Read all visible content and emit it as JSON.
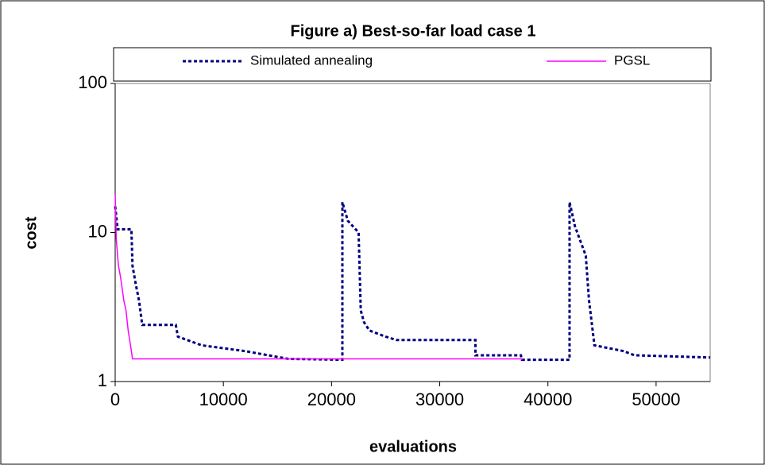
{
  "chart_data": {
    "type": "line",
    "title": "Figure a) Best-so-far load case 1",
    "x_label": "evaluations",
    "y_label": "cost",
    "xlim": [
      0,
      55000
    ],
    "xticks": [
      0,
      10000,
      20000,
      30000,
      40000,
      50000
    ],
    "ylim": [
      1,
      100
    ],
    "yticks": [
      1,
      10,
      100
    ],
    "log_y": true,
    "series": [
      {
        "name": "Simulated annealing",
        "color": "#000080",
        "dash": "dotted",
        "x": [
          0,
          200,
          200,
          1500,
          1600,
          1900,
          2200,
          2500,
          5600,
          5800,
          8000,
          12000,
          16000,
          21000,
          21000,
          21500,
          22500,
          22700,
          23000,
          23500,
          25000,
          26000,
          33300,
          33300,
          37500,
          37600,
          42000,
          42000,
          42500,
          43500,
          43800,
          44300,
          47000,
          48000,
          55000
        ],
        "values": [
          15,
          11,
          10.5,
          10.5,
          6,
          4.5,
          3.5,
          2.4,
          2.4,
          2.0,
          1.75,
          1.6,
          1.42,
          1.4,
          16,
          12,
          10,
          3,
          2.5,
          2.2,
          2.0,
          1.9,
          1.9,
          1.5,
          1.5,
          1.4,
          1.4,
          16,
          11,
          7,
          3.5,
          1.75,
          1.6,
          1.5,
          1.45
        ]
      },
      {
        "name": "PGSL",
        "color": "#ff00ff",
        "dash": "solid",
        "x": [
          0,
          100,
          300,
          500,
          800,
          1000,
          1200,
          1500,
          1600,
          37700
        ],
        "values": [
          18,
          9,
          6,
          5,
          3.5,
          3,
          2.2,
          1.6,
          1.42,
          1.42
        ]
      }
    ]
  }
}
